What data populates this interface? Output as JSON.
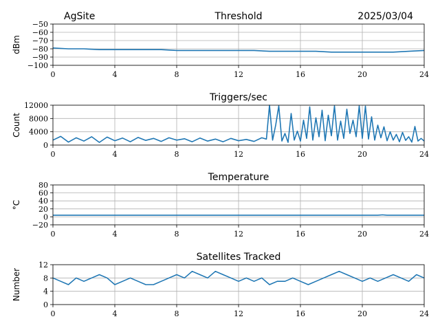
{
  "header": {
    "site": "AgSite",
    "date": "2025/03/04"
  },
  "chart_data": [
    {
      "type": "line",
      "title": "Threshold",
      "xlabel": "",
      "ylabel": "dBm",
      "xlim": [
        0,
        24
      ],
      "ylim": [
        -100,
        -50
      ],
      "xticks": [
        0,
        4,
        8,
        12,
        16,
        20,
        24
      ],
      "yticks": [
        -100,
        -90,
        -80,
        -70,
        -60,
        -50
      ],
      "ytick_labels": [
        "−100",
        "−90",
        "−80",
        "−70",
        "−60",
        "−50"
      ],
      "color": "#1f77b4",
      "grid": true,
      "series": [
        {
          "x": [
            0,
            1,
            2,
            3,
            4,
            5,
            6,
            7,
            8,
            9,
            10,
            11,
            12,
            13,
            14,
            15,
            16,
            17,
            18,
            19,
            20,
            21,
            22,
            23,
            24
          ],
          "y": [
            -79,
            -80,
            -80,
            -81,
            -81,
            -81,
            -81,
            -81,
            -82,
            -82,
            -82,
            -82,
            -82,
            -82,
            -83,
            -83,
            -83,
            -83,
            -84,
            -84,
            -84,
            -84,
            -84,
            -83,
            -82
          ]
        }
      ]
    },
    {
      "type": "line",
      "title": "Triggers/sec",
      "xlabel": "",
      "ylabel": "Count",
      "xlim": [
        0,
        24
      ],
      "ylim": [
        0,
        12000
      ],
      "xticks": [
        0,
        4,
        8,
        12,
        16,
        20,
        24
      ],
      "yticks": [
        0,
        4000,
        8000,
        12000
      ],
      "ytick_labels": [
        "0",
        "4000",
        "8000",
        "12000"
      ],
      "color": "#1f77b4",
      "grid": true,
      "series": [
        {
          "x": [
            0,
            0.5,
            1,
            1.5,
            2,
            2.5,
            3,
            3.5,
            4,
            4.5,
            5,
            5.5,
            6,
            6.5,
            7,
            7.5,
            8,
            8.5,
            9,
            9.5,
            10,
            10.5,
            11,
            11.5,
            12,
            12.5,
            13,
            13.5,
            13.8,
            14,
            14.2,
            14.4,
            14.6,
            14.8,
            15,
            15.2,
            15.4,
            15.6,
            15.8,
            16,
            16.2,
            16.4,
            16.6,
            16.8,
            17,
            17.2,
            17.4,
            17.6,
            17.8,
            18,
            18.2,
            18.4,
            18.6,
            18.8,
            19,
            19.2,
            19.4,
            19.6,
            19.8,
            20,
            20.2,
            20.4,
            20.6,
            20.8,
            21,
            21.2,
            21.4,
            21.6,
            21.8,
            22,
            22.2,
            22.4,
            22.6,
            22.8,
            23,
            23.2,
            23.4,
            23.6,
            23.8,
            24
          ],
          "y": [
            1500,
            2600,
            900,
            2200,
            1200,
            2500,
            800,
            2400,
            1300,
            2100,
            1000,
            2300,
            1400,
            2000,
            1100,
            2200,
            1500,
            1900,
            1000,
            2100,
            1200,
            1800,
            1000,
            2000,
            1300,
            1700,
            1100,
            2200,
            1800,
            12000,
            1500,
            6000,
            11800,
            1200,
            3500,
            800,
            9500,
            1500,
            4200,
            1200,
            7500,
            2000,
            11500,
            1500,
            8200,
            2500,
            10500,
            1300,
            9000,
            2800,
            11800,
            1500,
            7200,
            2000,
            10800,
            3500,
            7500,
            2500,
            11800,
            2000,
            11700,
            1800,
            8500,
            1500,
            6000,
            2200,
            5500,
            1300,
            4000,
            1500,
            3200,
            1000,
            3800,
            1400,
            2500,
            900,
            5600,
            1200,
            2000,
            1200
          ]
        }
      ]
    },
    {
      "type": "line",
      "title": "Temperature",
      "xlabel": "",
      "ylabel": "°C",
      "xlim": [
        0,
        24
      ],
      "ylim": [
        -20,
        80
      ],
      "xticks": [
        0,
        4,
        8,
        12,
        16,
        20,
        24
      ],
      "yticks": [
        -20,
        0,
        20,
        40,
        60,
        80
      ],
      "ytick_labels": [
        "−20",
        "0",
        "20",
        "40",
        "60",
        "80"
      ],
      "color": "#1f77b4",
      "grid": true,
      "series": [
        {
          "x": [
            0,
            4,
            8,
            12,
            16,
            20,
            21,
            21.3,
            21.6,
            22,
            24
          ],
          "y": [
            4,
            4,
            4,
            4,
            4,
            4,
            4,
            5,
            4,
            4,
            4
          ]
        }
      ]
    },
    {
      "type": "line",
      "title": "Satellites Tracked",
      "xlabel": "",
      "ylabel": "Number",
      "xlim": [
        0,
        24
      ],
      "ylim": [
        0,
        12
      ],
      "xticks": [
        0,
        4,
        8,
        12,
        16,
        20,
        24
      ],
      "yticks": [
        0,
        4,
        8,
        12
      ],
      "ytick_labels": [
        "0",
        "4",
        "8",
        "12"
      ],
      "color": "#1f77b4",
      "grid": true,
      "series": [
        {
          "x": [
            0,
            0.5,
            1,
            1.5,
            2,
            2.5,
            3,
            3.5,
            4,
            4.5,
            5,
            5.5,
            6,
            6.5,
            7,
            7.5,
            8,
            8.5,
            9,
            9.5,
            10,
            10.5,
            11,
            11.5,
            12,
            12.5,
            13,
            13.5,
            14,
            14.5,
            15,
            15.5,
            16,
            16.5,
            17,
            17.5,
            18,
            18.5,
            19,
            19.5,
            20,
            20.5,
            21,
            21.5,
            22,
            22.5,
            23,
            23.5,
            24
          ],
          "y": [
            8,
            7,
            6,
            8,
            7,
            8,
            9,
            8,
            6,
            7,
            8,
            7,
            6,
            6,
            7,
            8,
            9,
            8,
            10,
            9,
            8,
            10,
            9,
            8,
            7,
            8,
            7,
            8,
            6,
            7,
            7,
            8,
            7,
            6,
            7,
            8,
            9,
            10,
            9,
            8,
            7,
            8,
            7,
            8,
            9,
            8,
            7,
            9,
            8
          ]
        }
      ]
    }
  ]
}
